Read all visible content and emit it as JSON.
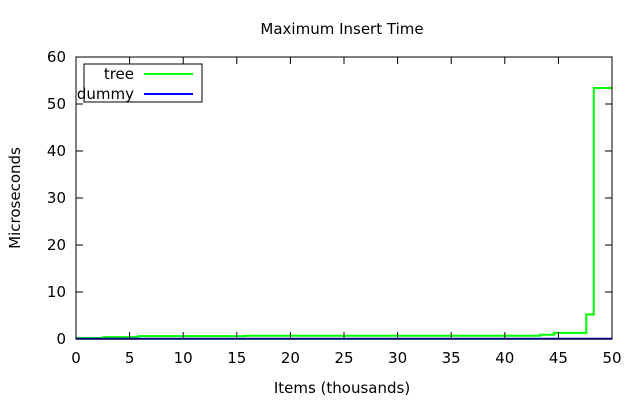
{
  "chart_data": {
    "type": "line",
    "title": "Maximum Insert Time",
    "xlabel": "Items (thousands)",
    "ylabel": "Microseconds",
    "xlim": [
      0,
      50
    ],
    "ylim": [
      0,
      60
    ],
    "xticks": [
      0,
      5,
      10,
      15,
      20,
      25,
      30,
      35,
      40,
      45,
      50
    ],
    "yticks": [
      0,
      10,
      20,
      30,
      40,
      50,
      60
    ],
    "grid": false,
    "legend_position": "top-left",
    "step": true,
    "series": [
      {
        "name": "tree",
        "color": "#00ff00",
        "x": [
          0,
          2.5,
          5.8,
          15.8,
          43.3,
          44.6,
          47.6,
          48.3,
          50
        ],
        "y": [
          0.2,
          0.4,
          0.6,
          0.7,
          0.9,
          1.3,
          5.2,
          53.4,
          53.4
        ]
      },
      {
        "name": "dummy",
        "color": "#0000ff",
        "x": [
          0,
          50
        ],
        "y": [
          0.05,
          0.05
        ]
      }
    ]
  }
}
